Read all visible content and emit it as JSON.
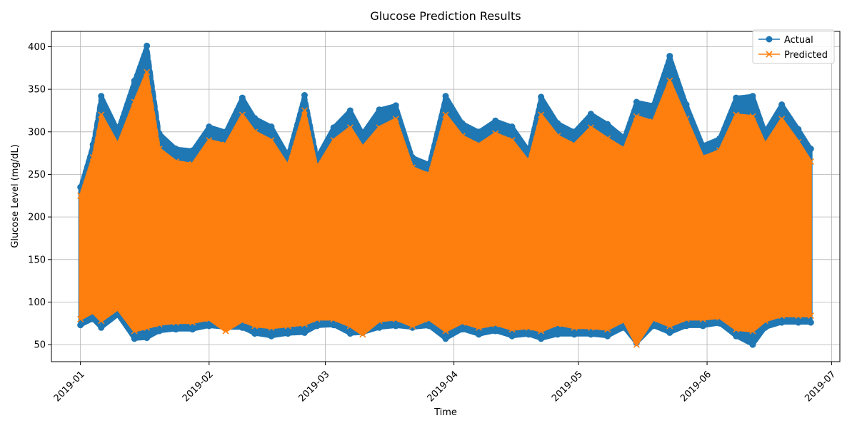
{
  "chart_data": {
    "type": "line",
    "title": "Glucose Prediction Results",
    "xlabel": "Time",
    "ylabel": "Glucose Level (mg/dL)",
    "x_range": [
      "2018-12-25",
      "2019-07-03"
    ],
    "ylim": [
      30,
      418
    ],
    "grid": true,
    "legend_position": "top-right",
    "x_ticks": [
      "2019-01",
      "2019-02",
      "2019-03",
      "2019-04",
      "2019-05",
      "2019-06",
      "2019-07"
    ],
    "y_ticks": [
      50,
      100,
      150,
      200,
      250,
      300,
      350,
      400
    ],
    "series": [
      {
        "name": "Actual",
        "color": "#1f77b4",
        "marker": "circle",
        "band_dates": [
          "2019-01-01",
          "2019-01-04",
          "2019-01-06",
          "2019-01-10",
          "2019-01-14",
          "2019-01-17",
          "2019-01-20",
          "2019-01-24",
          "2019-01-28",
          "2019-02-01",
          "2019-02-05",
          "2019-02-09",
          "2019-02-12",
          "2019-02-16",
          "2019-02-20",
          "2019-02-24",
          "2019-02-27",
          "2019-03-03",
          "2019-03-07",
          "2019-03-10",
          "2019-03-14",
          "2019-03-18",
          "2019-03-22",
          "2019-03-26",
          "2019-03-30",
          "2019-04-03",
          "2019-04-07",
          "2019-04-11",
          "2019-04-15",
          "2019-04-19",
          "2019-04-22",
          "2019-04-26",
          "2019-04-30",
          "2019-05-04",
          "2019-05-08",
          "2019-05-12",
          "2019-05-15",
          "2019-05-19",
          "2019-05-23",
          "2019-05-27",
          "2019-05-31",
          "2019-06-04",
          "2019-06-08",
          "2019-06-12",
          "2019-06-15",
          "2019-06-19",
          "2019-06-23",
          "2019-06-26"
        ],
        "band_max": [
          235,
          285,
          342,
          302,
          360,
          401,
          298,
          280,
          278,
          306,
          300,
          340,
          316,
          306,
          272,
          343,
          270,
          305,
          325,
          298,
          326,
          331,
          270,
          262,
          342,
          310,
          300,
          313,
          306,
          278,
          341,
          310,
          300,
          321,
          309,
          293,
          335,
          331,
          389,
          332,
          284,
          292,
          340,
          342,
          300,
          332,
          303,
          280
        ],
        "band_min": [
          73,
          80,
          70,
          85,
          57,
          58,
          66,
          68,
          68,
          72,
          70,
          70,
          63,
          60,
          63,
          64,
          72,
          73,
          63,
          64,
          70,
          72,
          70,
          72,
          57,
          68,
          62,
          66,
          60,
          62,
          57,
          62,
          62,
          62,
          60,
          70,
          52,
          72,
          64,
          72,
          72,
          75,
          60,
          50,
          70,
          76,
          76,
          76
        ]
      },
      {
        "name": "Predicted",
        "color": "#ff7f0e",
        "marker": "x",
        "band_dates": [
          "2019-01-01",
          "2019-01-04",
          "2019-01-06",
          "2019-01-10",
          "2019-01-14",
          "2019-01-17",
          "2019-01-20",
          "2019-01-24",
          "2019-01-28",
          "2019-02-01",
          "2019-02-05",
          "2019-02-09",
          "2019-02-12",
          "2019-02-16",
          "2019-02-20",
          "2019-02-24",
          "2019-02-27",
          "2019-03-03",
          "2019-03-07",
          "2019-03-10",
          "2019-03-14",
          "2019-03-18",
          "2019-03-22",
          "2019-03-26",
          "2019-03-30",
          "2019-04-03",
          "2019-04-07",
          "2019-04-11",
          "2019-04-15",
          "2019-04-19",
          "2019-04-22",
          "2019-04-26",
          "2019-04-30",
          "2019-05-04",
          "2019-05-08",
          "2019-05-12",
          "2019-05-15",
          "2019-05-19",
          "2019-05-23",
          "2019-05-27",
          "2019-05-31",
          "2019-06-04",
          "2019-06-08",
          "2019-06-12",
          "2019-06-15",
          "2019-06-19",
          "2019-06-23",
          "2019-06-26"
        ],
        "band_max": [
          225,
          270,
          320,
          285,
          335,
          370,
          280,
          265,
          262,
          290,
          285,
          320,
          300,
          290,
          260,
          325,
          258,
          290,
          305,
          282,
          305,
          315,
          258,
          250,
          320,
          295,
          285,
          298,
          290,
          265,
          320,
          295,
          285,
          305,
          292,
          280,
          318,
          312,
          360,
          315,
          270,
          278,
          320,
          318,
          285,
          315,
          288,
          265
        ],
        "band_min": [
          80,
          88,
          78,
          92,
          66,
          70,
          74,
          76,
          76,
          80,
          66,
          78,
          72,
          70,
          72,
          74,
          80,
          80,
          72,
          62,
          78,
          80,
          72,
          80,
          66,
          76,
          70,
          74,
          68,
          70,
          66,
          74,
          70,
          70,
          68,
          78,
          50,
          80,
          72,
          80,
          80,
          82,
          68,
          66,
          78,
          84,
          84,
          84
        ]
      }
    ]
  }
}
